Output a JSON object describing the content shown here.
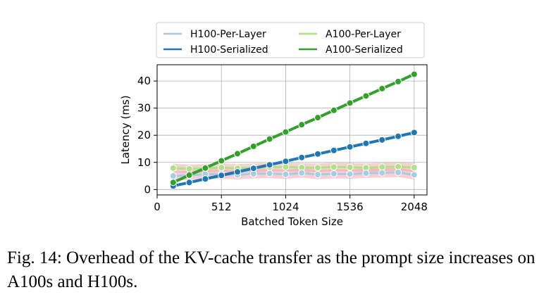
{
  "chart_data": {
    "type": "line",
    "xlabel": "Batched Token Size",
    "ylabel": "Latency (ms)",
    "xlim": [
      0,
      2150
    ],
    "ylim": [
      -2,
      46
    ],
    "xticks": [
      0,
      512,
      1024,
      1536,
      2048
    ],
    "yticks": [
      0,
      10,
      20,
      30,
      40
    ],
    "grid": true,
    "legend_position": "top",
    "x": [
      128,
      256,
      384,
      512,
      640,
      768,
      896,
      1024,
      1152,
      1280,
      1408,
      1536,
      1664,
      1792,
      1920,
      2048
    ],
    "series": [
      {
        "name": "H100-Per-Layer",
        "color": "#a6cee3",
        "values": [
          5.0,
          5.2,
          5.6,
          5.7,
          5.4,
          5.8,
          5.9,
          5.6,
          6.1,
          5.5,
          5.8,
          5.7,
          6.0,
          6.1,
          6.3,
          5.4
        ]
      },
      {
        "name": "H100-Serialized",
        "color": "#1f78b4",
        "values": [
          1.3,
          2.6,
          3.9,
          5.2,
          6.5,
          7.8,
          9.1,
          10.4,
          11.8,
          13.1,
          14.4,
          15.7,
          17.0,
          18.3,
          19.6,
          21.0
        ]
      },
      {
        "name": "A100-Per-Layer",
        "color": "#b2df8a",
        "values": [
          7.9,
          7.6,
          7.8,
          8.1,
          7.8,
          8.0,
          8.2,
          8.3,
          8.1,
          8.0,
          8.3,
          8.2,
          8.0,
          8.3,
          8.4,
          8.1
        ]
      },
      {
        "name": "A100-Serialized",
        "color": "#33a02c",
        "values": [
          2.6,
          5.3,
          7.9,
          10.6,
          13.2,
          15.9,
          18.6,
          21.2,
          23.9,
          26.5,
          29.2,
          31.9,
          34.5,
          37.2,
          39.8,
          42.5
        ]
      }
    ]
  },
  "caption": "Fig. 14: Overhead of the KV-cache transfer as the prompt size increases on A100s and H100s."
}
